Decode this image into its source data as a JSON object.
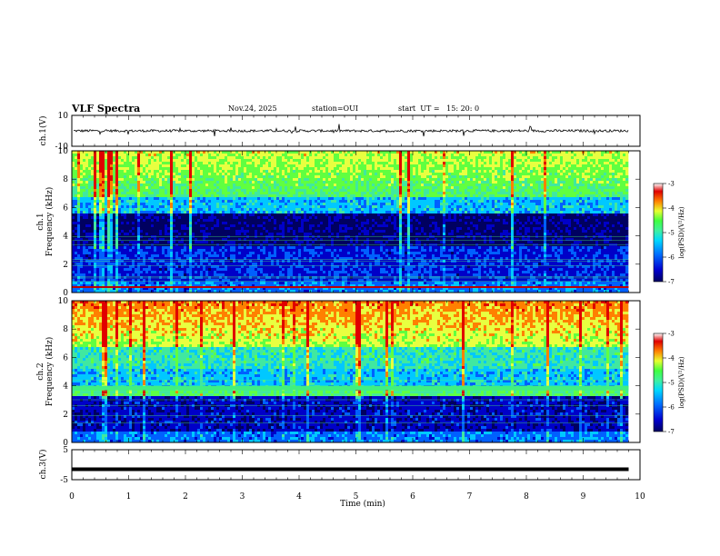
{
  "header": {
    "title": "VLF Spectra",
    "date": "Nov.24, 2025",
    "station": "station=OUI",
    "start": "start  UT =   15: 20: 0"
  },
  "chart_data": [
    {
      "type": "line",
      "name": "ch1-waveform",
      "ylabel": "ch.1(V)",
      "ylim": [
        -10,
        10
      ],
      "y_ticks": [
        "10",
        "-10"
      ],
      "baseline": 0,
      "description_series": "noisy waveform around 0 V with sparse spikes"
    },
    {
      "type": "heatmap",
      "name": "ch1-spectrogram",
      "ylabel": "ch.1\nFrequency (kHz)",
      "ylabel_lines": [
        "ch.1",
        "Frequency (kHz)"
      ],
      "ylim": [
        0,
        10
      ],
      "y_ticks": [
        "0",
        "2",
        "4",
        "6",
        "8",
        "10"
      ],
      "colorbar": {
        "label": "log(PSD)(V²/Hz)",
        "range": [
          -7,
          -3
        ],
        "ticks": [
          "-3",
          "-4",
          "-5",
          "-6",
          "-7"
        ]
      }
    },
    {
      "type": "heatmap",
      "name": "ch2-spectrogram",
      "ylabel": "ch.2\nFrequency (kHz)",
      "ylabel_lines": [
        "ch.2",
        "Frequency (kHz)"
      ],
      "ylim": [
        0,
        10
      ],
      "y_ticks": [
        "0",
        "2",
        "4",
        "6",
        "8",
        "10"
      ],
      "colorbar": {
        "label": "log(PSD)(V²/Hz)",
        "range": [
          -7,
          -3
        ],
        "ticks": [
          "-3",
          "-4",
          "-5",
          "-6",
          "-7"
        ]
      }
    },
    {
      "type": "line",
      "name": "ch3-waveform",
      "ylabel": "ch.3(V)",
      "ylim": [
        -5,
        5
      ],
      "y_ticks": [
        "5",
        "-5"
      ],
      "constant_value": -1.5
    }
  ],
  "x_axis": {
    "label": "Time (min)",
    "range": [
      0,
      10
    ],
    "data_end": 9.8,
    "ticks": [
      "0",
      "1",
      "2",
      "3",
      "4",
      "5",
      "6",
      "7",
      "8",
      "9",
      "10"
    ]
  },
  "colors": {
    "colormap": [
      "#000060",
      "#0000c8",
      "#0060ff",
      "#00c8ff",
      "#40e8a0",
      "#60ff40",
      "#e8ff40",
      "#ff8000",
      "#e00000",
      "#ffffff"
    ]
  }
}
